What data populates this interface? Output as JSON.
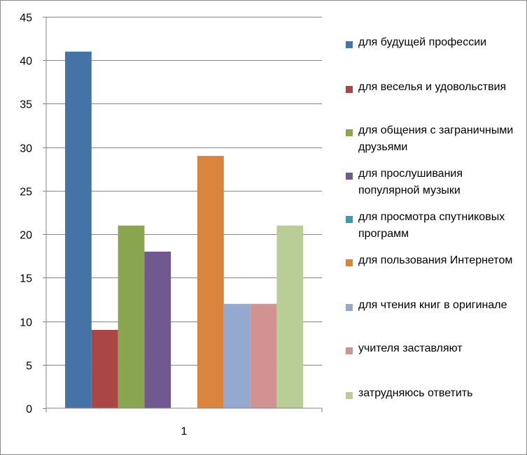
{
  "chart_data": {
    "type": "bar",
    "categories": [
      "1"
    ],
    "ylim": [
      0,
      45
    ],
    "yticks": [
      0,
      5,
      10,
      15,
      20,
      25,
      30,
      35,
      40,
      45
    ],
    "grid": true,
    "legend_position": "right",
    "series": [
      {
        "name": "для будущей профессии",
        "values": [
          41
        ],
        "color": "#4572A7"
      },
      {
        "name": "для веселья и удовольствия",
        "values": [
          9
        ],
        "color": "#AA4643"
      },
      {
        "name": "для общения с заграничными друзьями",
        "values": [
          21
        ],
        "color": "#89A54E"
      },
      {
        "name": "для прослушивания популярной музыки",
        "values": [
          18
        ],
        "color": "#71588F"
      },
      {
        "name": "для просмотра спутниковых программ",
        "values": [
          0
        ],
        "color": "#4198AF"
      },
      {
        "name": "для пользования Интернетом",
        "values": [
          29
        ],
        "color": "#DB843D"
      },
      {
        "name": "для чтения книг в оригинале",
        "values": [
          12
        ],
        "color": "#93A9CF"
      },
      {
        "name": "учителя заставляют",
        "values": [
          12
        ],
        "color": "#D19392"
      },
      {
        "name": "затрудняюсь ответить",
        "values": [
          21
        ],
        "color": "#B9CD96"
      }
    ]
  }
}
